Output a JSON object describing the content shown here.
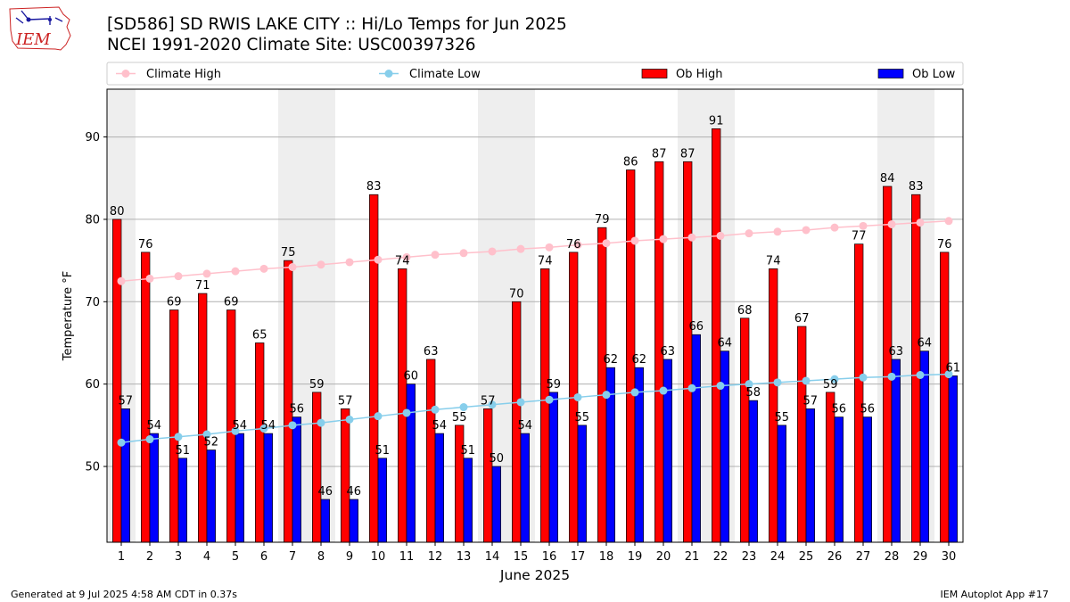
{
  "header": {
    "title": "[SD586] SD RWIS LAKE CITY :: Hi/Lo Temps for Jun 2025",
    "subtitle": "NCEI 1991-2020 Climate Site: USC00397326",
    "logo_text": "IEM"
  },
  "footer": {
    "generated": "Generated at 9 Jul 2025 4:58 AM CDT in 0.37s",
    "app": "IEM Autoplot App #17"
  },
  "colors": {
    "ob_high": "#ff0000",
    "ob_low": "#0000ff",
    "climate_high": "#ffc0cb",
    "climate_low": "#87ceeb",
    "weekend_band": "#eeeeee",
    "grid": "#b0b0b0",
    "logo": "#cc2222"
  },
  "chart_data": {
    "type": "bar",
    "title": "[SD586] SD RWIS LAKE CITY :: Hi/Lo Temps for Jun 2025",
    "xlabel": "June 2025",
    "ylabel": "Temperature °F",
    "categories": [
      "1",
      "2",
      "3",
      "4",
      "5",
      "6",
      "7",
      "8",
      "9",
      "10",
      "11",
      "12",
      "13",
      "14",
      "15",
      "16",
      "17",
      "18",
      "19",
      "20",
      "21",
      "22",
      "23",
      "24",
      "25",
      "26",
      "27",
      "28",
      "29",
      "30"
    ],
    "ylim": [
      40.8,
      95.8
    ],
    "yticks": [
      50,
      60,
      70,
      80,
      90
    ],
    "grid": "horizontal",
    "legend_position": "top",
    "shaded_days": [
      1,
      7,
      8,
      14,
      15,
      21,
      22,
      28,
      29
    ],
    "series": [
      {
        "name": "Ob High",
        "kind": "bar",
        "values": [
          80,
          76,
          69,
          71,
          69,
          65,
          75,
          59,
          57,
          83,
          74,
          63,
          55,
          57,
          70,
          74,
          76,
          79,
          86,
          87,
          87,
          91,
          68,
          74,
          67,
          59,
          77,
          84,
          83,
          76
        ]
      },
      {
        "name": "Ob Low",
        "kind": "bar",
        "values": [
          57,
          54,
          51,
          52,
          54,
          54,
          56,
          46,
          46,
          51,
          60,
          54,
          51,
          50,
          54,
          59,
          55,
          62,
          62,
          63,
          66,
          64,
          58,
          55,
          57,
          56,
          56,
          63,
          64,
          61
        ]
      },
      {
        "name": "Climate High",
        "kind": "line",
        "values": [
          72.5,
          72.8,
          73.1,
          73.4,
          73.7,
          74.0,
          74.2,
          74.5,
          74.8,
          75.1,
          75.4,
          75.7,
          75.9,
          76.1,
          76.4,
          76.6,
          76.9,
          77.1,
          77.4,
          77.6,
          77.8,
          78.0,
          78.3,
          78.5,
          78.7,
          79.0,
          79.2,
          79.4,
          79.6,
          79.8
        ]
      },
      {
        "name": "Climate Low",
        "kind": "line",
        "values": [
          52.9,
          53.3,
          53.6,
          53.9,
          54.3,
          54.6,
          55.0,
          55.3,
          55.7,
          56.1,
          56.5,
          56.9,
          57.2,
          57.5,
          57.8,
          58.1,
          58.4,
          58.7,
          59.0,
          59.2,
          59.5,
          59.8,
          60.0,
          60.2,
          60.4,
          60.6,
          60.8,
          60.9,
          61.1,
          61.2
        ]
      }
    ]
  }
}
